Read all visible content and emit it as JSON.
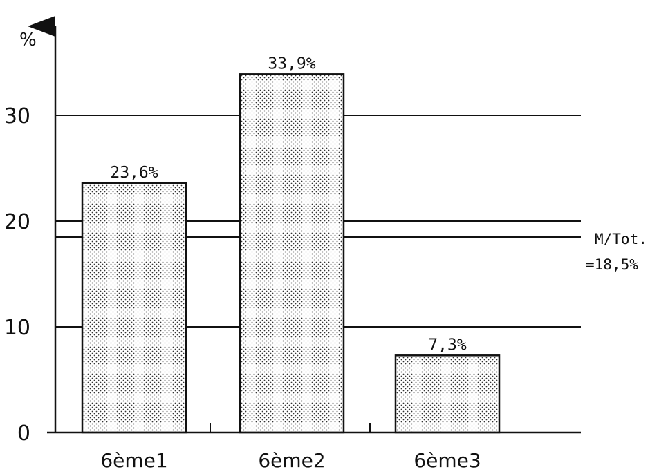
{
  "chart_data": {
    "type": "bar",
    "categories": [
      "6ème1",
      "6ème2",
      "6ème3"
    ],
    "values": [
      23.6,
      33.9,
      7.3
    ],
    "value_labels": [
      "23,6%",
      "33,9%",
      "7,3%"
    ],
    "title": "",
    "xlabel": "",
    "ylabel": "%",
    "ylim": [
      0,
      38
    ],
    "yticks": [
      0,
      10,
      20,
      30
    ],
    "ytick_labels": [
      "0",
      "10",
      "20",
      "30"
    ],
    "grid": true,
    "gridlines": [
      10,
      20,
      30
    ],
    "reference_line": {
      "value": 18.5,
      "label_line1": "M/Tot.",
      "label_line2": "=18,5%"
    },
    "bar_fill": "dotted"
  }
}
